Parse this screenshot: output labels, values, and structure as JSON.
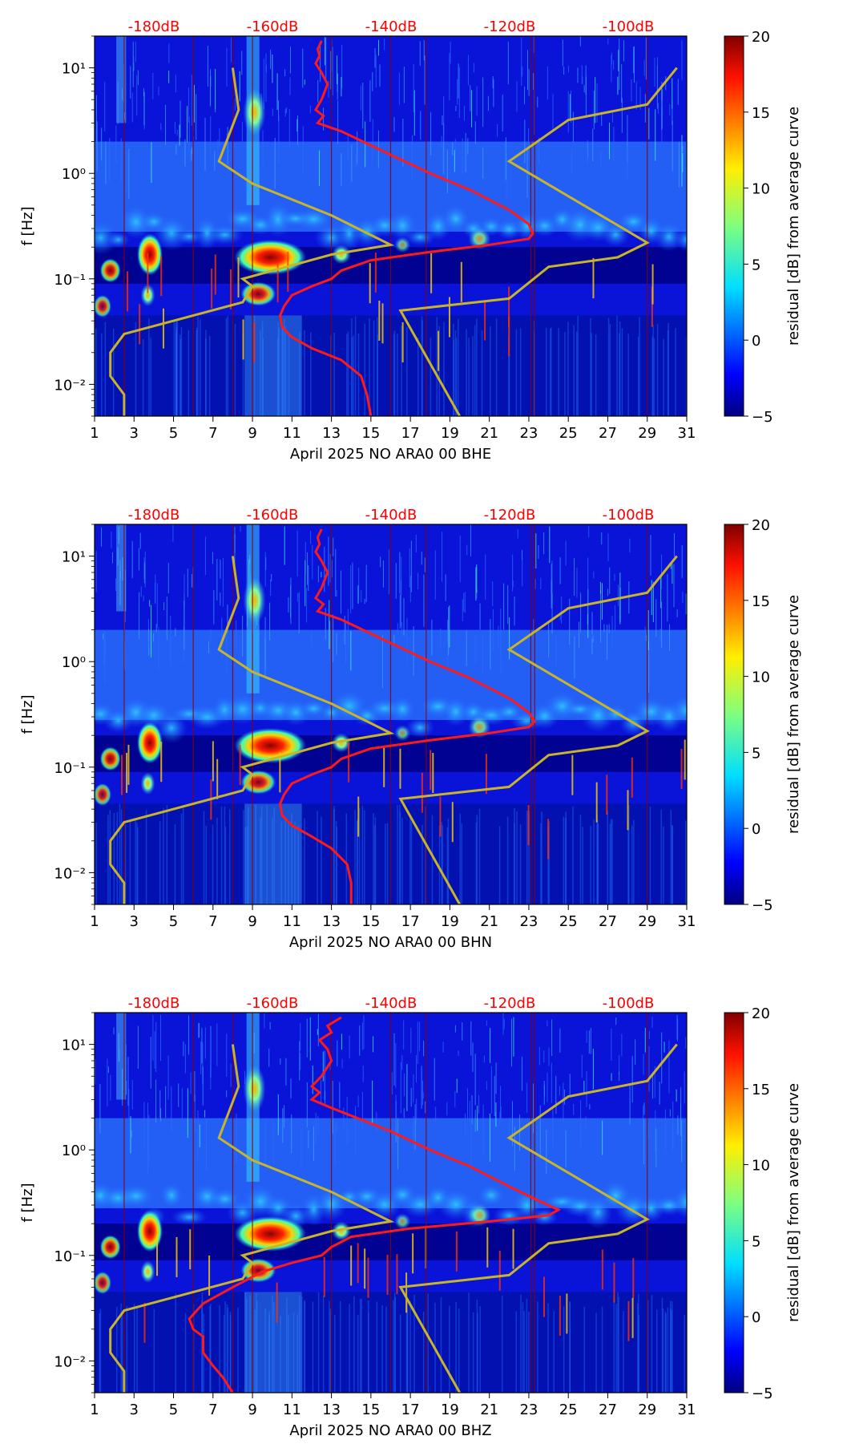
{
  "colors": {
    "db_label": "#ff0000",
    "psd_curve": "#ff1a1a",
    "nlnm_nhnm": "#c8b42a",
    "day_lines": "#8b0000",
    "background_low": "#00008f",
    "background_mid": "#1f5bff"
  },
  "chart_data": [
    {
      "type": "heatmap",
      "xlabel": "April 2025 NO ARA0 00 BHE",
      "ylabel": "f [Hz]",
      "x_ticks": [
        "1",
        "3",
        "5",
        "7",
        "9",
        "11",
        "13",
        "15",
        "17",
        "19",
        "21",
        "23",
        "25",
        "27",
        "29",
        "31"
      ],
      "y_ticks": [
        "10⁻²",
        "10⁻¹",
        "10⁰",
        "10¹"
      ],
      "ylim": [
        0.005,
        20
      ],
      "xlim": [
        1,
        31
      ],
      "db_labels": [
        "-180dB",
        "-160dB",
        "-140dB",
        "-120dB",
        "-100dB"
      ],
      "colorbar": {
        "label": "residual [dB] from average curve",
        "ticks": [
          "−5",
          "0",
          "5",
          "10",
          "15",
          "20"
        ],
        "range": [
          -5,
          20
        ]
      },
      "psd_curve": {
        "days": [
          12.5,
          12.3,
          12.4,
          12.2,
          12.5,
          12.8,
          12.5,
          12.2,
          12.6,
          12.3,
          13.5,
          16,
          18,
          20,
          22,
          23,
          23.2,
          23,
          21,
          18,
          15,
          13.5,
          13,
          12,
          11,
          10.6,
          10.4,
          10.5,
          11,
          12,
          13.5,
          14.5,
          14.8,
          15
        ],
        "freq": [
          18,
          15,
          13,
          11,
          9,
          7,
          5,
          4,
          3.5,
          3,
          2.5,
          1.5,
          1.0,
          0.7,
          0.45,
          0.33,
          0.27,
          0.24,
          0.21,
          0.18,
          0.15,
          0.12,
          0.1,
          0.085,
          0.07,
          0.055,
          0.045,
          0.035,
          0.028,
          0.022,
          0.017,
          0.012,
          0.008,
          0.005
        ]
      },
      "nlnm_curve": {
        "days": [
          8,
          8.3,
          7.3,
          9,
          13,
          16,
          13,
          8.5,
          9,
          8.5,
          2.5,
          1.8,
          1.8,
          2.5,
          2.5
        ],
        "freq": [
          10,
          4,
          1.3,
          0.8,
          0.4,
          0.21,
          0.17,
          0.1,
          0.085,
          0.06,
          0.03,
          0.02,
          0.012,
          0.008,
          0.005
        ]
      },
      "nhnm_curve": {
        "days": [
          30.5,
          29,
          25,
          22,
          29,
          27.5,
          24,
          22,
          16.5,
          19.5
        ],
        "freq": [
          10,
          4.5,
          3.2,
          1.3,
          0.22,
          0.16,
          0.13,
          0.065,
          0.05,
          0.005
        ]
      }
    },
    {
      "type": "heatmap",
      "xlabel": "April 2025 NO ARA0 00 BHN",
      "ylabel": "f [Hz]",
      "x_ticks": [
        "1",
        "3",
        "5",
        "7",
        "9",
        "11",
        "13",
        "15",
        "17",
        "19",
        "21",
        "23",
        "25",
        "27",
        "29",
        "31"
      ],
      "y_ticks": [
        "10⁻²",
        "10⁻¹",
        "10⁰",
        "10¹"
      ],
      "ylim": [
        0.005,
        20
      ],
      "xlim": [
        1,
        31
      ],
      "db_labels": [
        "-180dB",
        "-160dB",
        "-140dB",
        "-120dB",
        "-100dB"
      ],
      "colorbar": {
        "label": "residual [dB] from average curve",
        "ticks": [
          "−5",
          "0",
          "5",
          "10",
          "15",
          "20"
        ],
        "range": [
          -5,
          20
        ]
      },
      "psd_curve": {
        "days": [
          12.5,
          12.3,
          12.4,
          12.2,
          12.5,
          12.8,
          12.5,
          12.2,
          12.6,
          12.3,
          13.5,
          16,
          18,
          20,
          22,
          23,
          23.3,
          23,
          21,
          18,
          15,
          13.5,
          13,
          12,
          11,
          10.6,
          10.4,
          10.5,
          11,
          12,
          13,
          13.8,
          14,
          14
        ],
        "freq": [
          18,
          15,
          13,
          11,
          9,
          7,
          5,
          4,
          3.5,
          3,
          2.5,
          1.5,
          1.0,
          0.7,
          0.45,
          0.33,
          0.27,
          0.24,
          0.21,
          0.18,
          0.15,
          0.12,
          0.1,
          0.085,
          0.07,
          0.055,
          0.045,
          0.035,
          0.028,
          0.022,
          0.017,
          0.012,
          0.008,
          0.005
        ]
      },
      "nlnm_curve": {
        "days": [
          8,
          8.3,
          7.3,
          9,
          13,
          16,
          13,
          8.5,
          9,
          8.5,
          2.5,
          1.8,
          1.8,
          2.5,
          2.5
        ],
        "freq": [
          10,
          4,
          1.3,
          0.8,
          0.4,
          0.21,
          0.17,
          0.1,
          0.085,
          0.06,
          0.03,
          0.02,
          0.012,
          0.008,
          0.005
        ]
      },
      "nhnm_curve": {
        "days": [
          30.5,
          29,
          25,
          22,
          29,
          27.5,
          24,
          22,
          16.5,
          19.5
        ],
        "freq": [
          10,
          4.5,
          3.2,
          1.3,
          0.22,
          0.16,
          0.13,
          0.065,
          0.05,
          0.005
        ]
      }
    },
    {
      "type": "heatmap",
      "xlabel": "April 2025 NO ARA0 00 BHZ",
      "ylabel": "f [Hz]",
      "x_ticks": [
        "1",
        "3",
        "5",
        "7",
        "9",
        "11",
        "13",
        "15",
        "17",
        "19",
        "21",
        "23",
        "25",
        "27",
        "29",
        "31"
      ],
      "y_ticks": [
        "10⁻²",
        "10⁻¹",
        "10⁰",
        "10¹"
      ],
      "ylim": [
        0.005,
        20
      ],
      "xlim": [
        1,
        31
      ],
      "db_labels": [
        "-180dB",
        "-160dB",
        "-140dB",
        "-120dB",
        "-100dB"
      ],
      "colorbar": {
        "label": "residual [dB] from average curve",
        "ticks": [
          "−5",
          "0",
          "5",
          "10",
          "15",
          "20"
        ],
        "range": [
          -5,
          20
        ]
      },
      "psd_curve": {
        "days": [
          13.5,
          12.8,
          13,
          12.4,
          12.8,
          13,
          12.5,
          12,
          12.4,
          12,
          13,
          16,
          18,
          20,
          22,
          23.5,
          24.5,
          24,
          21,
          17,
          14,
          13,
          12.5,
          11,
          9.5,
          8,
          6.5,
          5.8,
          6,
          6.5,
          6.5,
          7,
          7.5,
          8
        ],
        "freq": [
          18,
          15,
          13,
          11,
          9,
          7,
          5,
          4,
          3.5,
          3,
          2.5,
          1.5,
          1.0,
          0.7,
          0.45,
          0.33,
          0.27,
          0.24,
          0.21,
          0.18,
          0.15,
          0.12,
          0.1,
          0.085,
          0.07,
          0.05,
          0.035,
          0.025,
          0.02,
          0.017,
          0.012,
          0.009,
          0.007,
          0.005
        ]
      },
      "nlnm_curve": {
        "days": [
          8,
          8.3,
          7.3,
          9,
          13,
          16,
          13,
          8.5,
          9,
          8.5,
          2.5,
          1.8,
          1.8,
          2.5,
          2.5
        ],
        "freq": [
          10,
          4,
          1.3,
          0.8,
          0.4,
          0.21,
          0.17,
          0.1,
          0.085,
          0.06,
          0.03,
          0.02,
          0.012,
          0.008,
          0.005
        ]
      },
      "nhnm_curve": {
        "days": [
          30.5,
          29,
          25,
          22,
          29,
          27.5,
          24,
          22,
          16.5,
          19.5
        ],
        "freq": [
          10,
          4.5,
          3.2,
          1.3,
          0.22,
          0.16,
          0.13,
          0.065,
          0.05,
          0.005
        ]
      }
    }
  ]
}
